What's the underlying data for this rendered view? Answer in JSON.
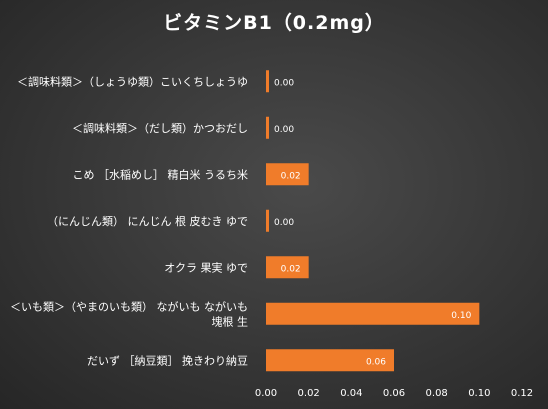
{
  "chart_data": {
    "type": "bar",
    "orientation": "horizontal",
    "title": "ビタミンB1（0.2mg）",
    "categories": [
      [
        "＜調味料類＞（しょうゆ類）こいくちしょうゆ"
      ],
      [
        "＜調味料類＞（だし類）かつおだし"
      ],
      [
        "こめ ［水稲めし］ 精白米 うるち米"
      ],
      [
        "（にんじん類） にんじん 根 皮むき ゆで"
      ],
      [
        "オクラ 果実 ゆで"
      ],
      [
        "＜いも類＞（やまのいも類） ながいも ながいも",
        "塊根 生"
      ],
      [
        "だいず ［納豆類］ 挽きわり納豆"
      ]
    ],
    "values": [
      0.001,
      0.001,
      0.02,
      0.001,
      0.02,
      0.1,
      0.06
    ],
    "data_labels": [
      "0.00",
      "0.00",
      "0.02",
      "0.00",
      "0.02",
      "0.10",
      "0.06"
    ],
    "xlim": [
      0,
      0.12
    ],
    "xticks": [
      "0.00",
      "0.02",
      "0.04",
      "0.06",
      "0.08",
      "0.10",
      "0.12"
    ],
    "bar_color": "#f07c2a",
    "grid": false,
    "legend": "none"
  }
}
